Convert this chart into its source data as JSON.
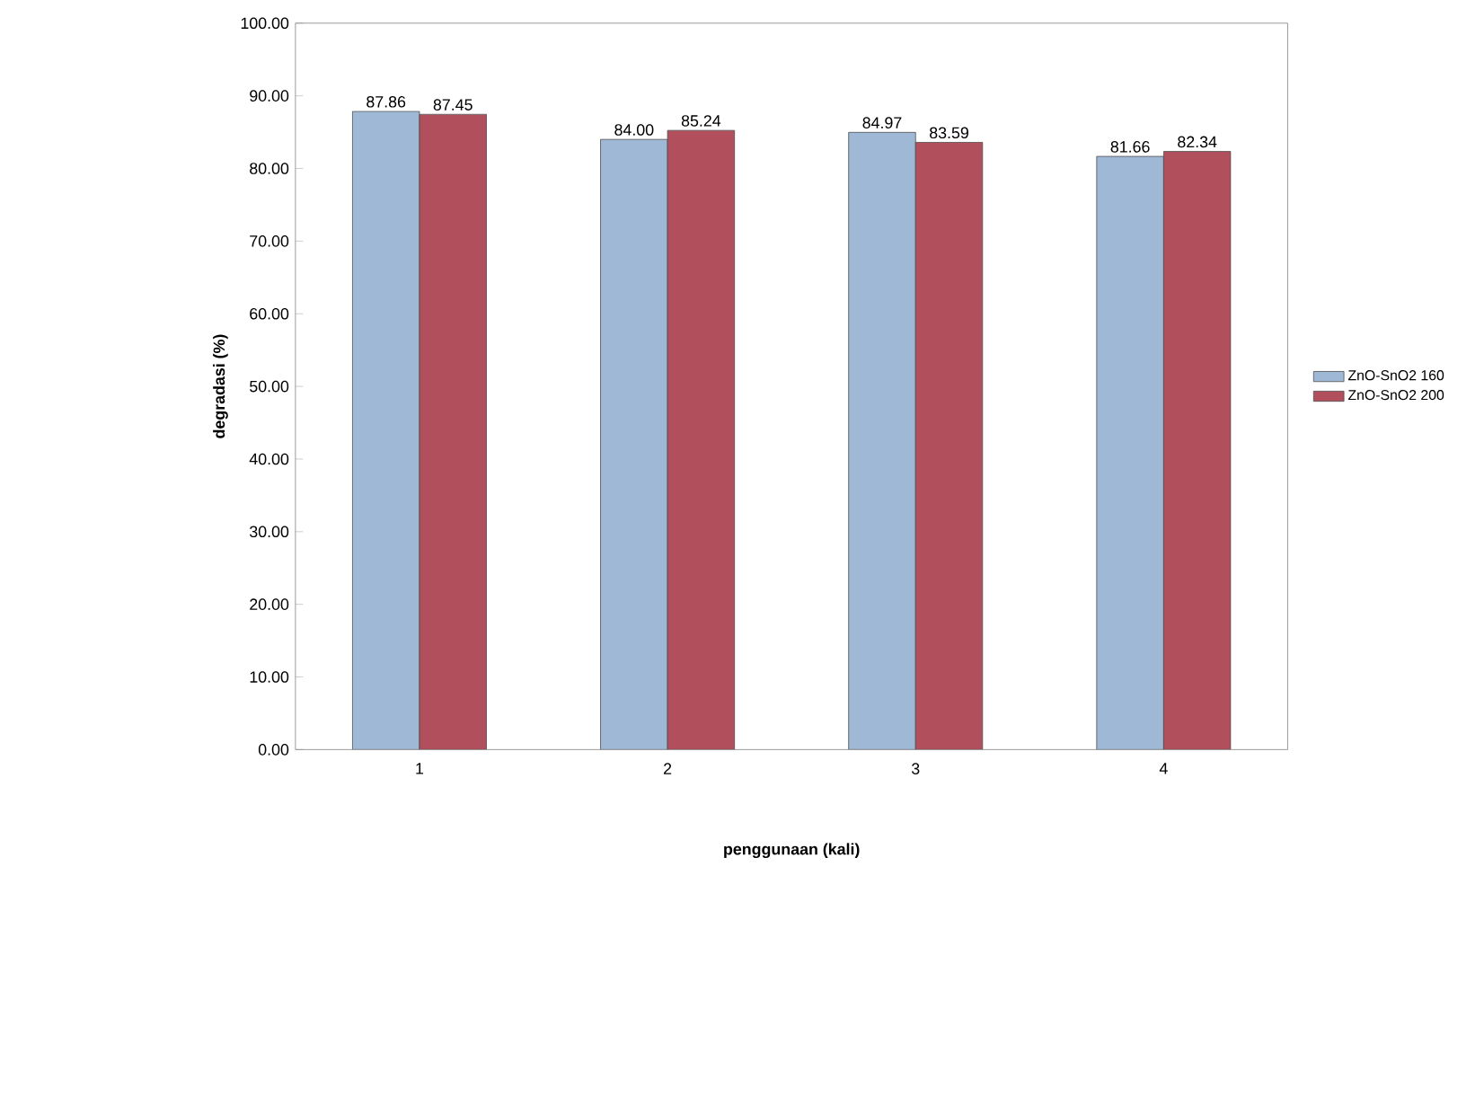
{
  "chart_data": {
    "type": "bar",
    "xlabel": "penggunaan (kali)",
    "ylabel": "degradasi (%)",
    "categories": [
      "1",
      "2",
      "3",
      "4"
    ],
    "series": [
      {
        "name": "ZnO-SnO2 160",
        "color": "#9fb8d6",
        "values": [
          87.86,
          84.0,
          84.97,
          81.66
        ],
        "value_labels": [
          "87.86",
          "84.00",
          "84.97",
          "81.66"
        ]
      },
      {
        "name": "ZnO-SnO2 200",
        "color": "#b14f5c",
        "values": [
          87.45,
          85.24,
          83.59,
          82.34
        ],
        "value_labels": [
          "87.45",
          "85.24",
          "83.59",
          "82.34"
        ]
      }
    ],
    "ylim": [
      0,
      100
    ],
    "yticks": [
      {
        "value": 0,
        "label": "0.00"
      },
      {
        "value": 10,
        "label": "10.00"
      },
      {
        "value": 20,
        "label": "20.00"
      },
      {
        "value": 30,
        "label": "30.00"
      },
      {
        "value": 40,
        "label": "40.00"
      },
      {
        "value": 50,
        "label": "50.00"
      },
      {
        "value": 60,
        "label": "60.00"
      },
      {
        "value": 70,
        "label": "70.00"
      },
      {
        "value": 80,
        "label": "80.00"
      },
      {
        "value": 90,
        "label": "90.00"
      },
      {
        "value": 100,
        "label": "100.00"
      }
    ],
    "legend": "right",
    "grid": false
  }
}
